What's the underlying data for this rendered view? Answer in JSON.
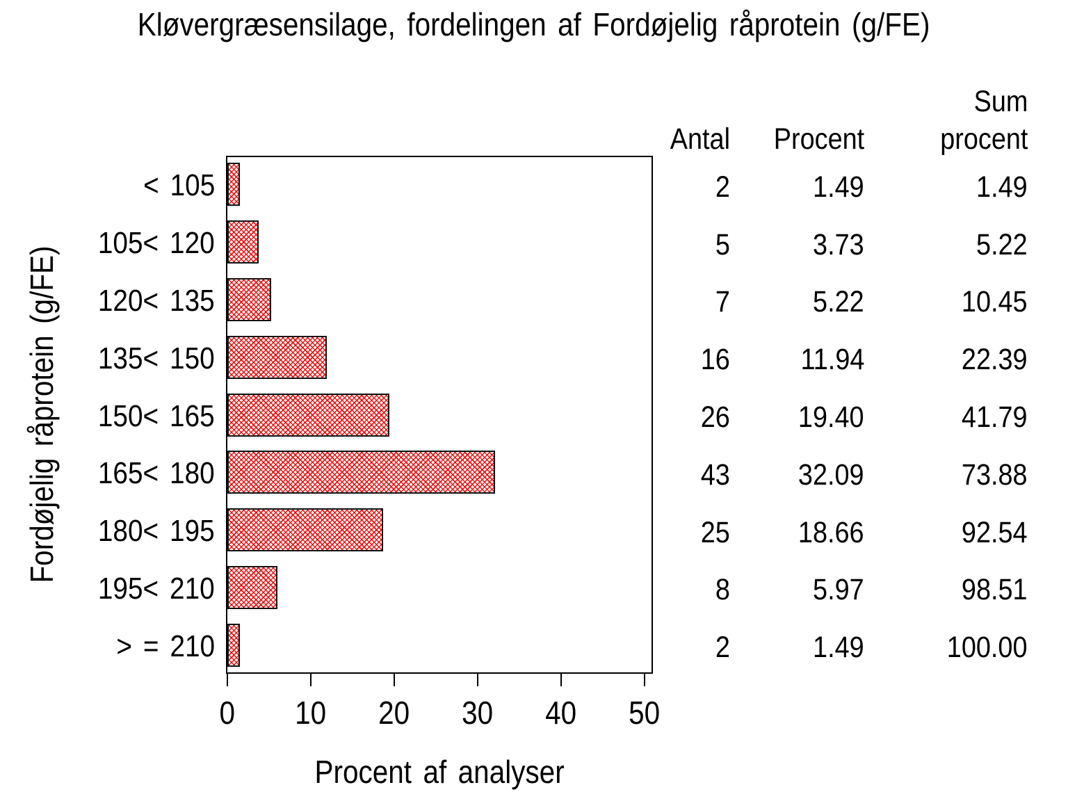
{
  "title": "Kløvergræsensilage, fordelingen af Fordøjelig råprotein (g/FE)",
  "chart_data": {
    "type": "bar",
    "orientation": "horizontal",
    "title": "Kløvergræsensilage, fordelingen af Fordøjelig råprotein (g/FE)",
    "xlabel": "Procent af analyser",
    "ylabel": "Fordøjelig råprotein (g/FE)",
    "categories": [
      "< 105",
      "105< 120",
      "120< 135",
      "135< 150",
      "150< 165",
      "165< 180",
      "180< 195",
      "195< 210",
      "> = 210"
    ],
    "values": [
      1.49,
      3.73,
      5.22,
      11.94,
      19.4,
      32.09,
      18.66,
      5.97,
      1.49
    ],
    "xlim": [
      0,
      50
    ],
    "xticks": [
      "0",
      "10",
      "20",
      "30",
      "40",
      "50"
    ],
    "grid": "off",
    "bar_fill": "diagonal-crosshatch",
    "bar_color": "#e81414",
    "bar_border_color": "#000000"
  },
  "table": {
    "header": {
      "antal": "Antal",
      "procent": "Procent",
      "sum_line1": "Sum",
      "sum_line2": "procent"
    },
    "columns": [
      "Antal",
      "Procent",
      "Sum procent"
    ],
    "rows": [
      [
        "2",
        "1.49",
        "1.49"
      ],
      [
        "5",
        "3.73",
        "5.22"
      ],
      [
        "7",
        "5.22",
        "10.45"
      ],
      [
        "16",
        "11.94",
        "22.39"
      ],
      [
        "26",
        "19.40",
        "41.79"
      ],
      [
        "43",
        "32.09",
        "73.88"
      ],
      [
        "25",
        "18.66",
        "92.54"
      ],
      [
        "8",
        "5.97",
        "98.51"
      ],
      [
        "2",
        "1.49",
        "100.00"
      ]
    ]
  }
}
